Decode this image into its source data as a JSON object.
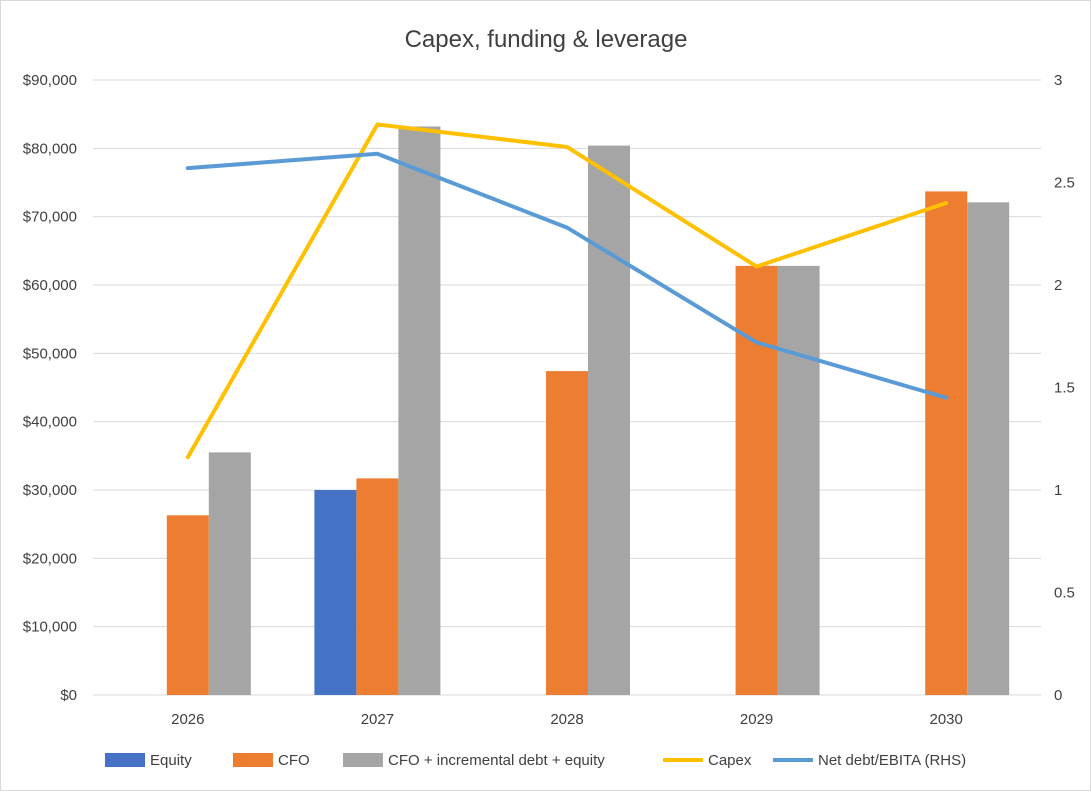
{
  "chart_data": {
    "type": "bar",
    "title": "Capex, funding & leverage",
    "categories": [
      "2026",
      "2027",
      "2028",
      "2029",
      "2030"
    ],
    "y_left": {
      "min": 0,
      "max": 90000,
      "step": 10000,
      "tick_labels": [
        "$0",
        "$10,000",
        "$20,000",
        "$30,000",
        "$40,000",
        "$50,000",
        "$60,000",
        "$70,000",
        "$80,000",
        "$90,000"
      ]
    },
    "y_right": {
      "min": 0,
      "max": 3,
      "step": 0.5,
      "tick_labels": [
        "0",
        "0.5",
        "1",
        "1.5",
        "2",
        "2.5",
        "3"
      ]
    },
    "gridlines": true,
    "legend_position": "bottom",
    "series": [
      {
        "name": "Equity",
        "kind": "bar",
        "axis": "left",
        "color": "#4472C4",
        "values": [
          null,
          30000,
          null,
          null,
          null
        ]
      },
      {
        "name": "CFO",
        "kind": "bar",
        "axis": "left",
        "color": "#ED7D31",
        "values": [
          26300,
          31700,
          47400,
          62800,
          73700
        ]
      },
      {
        "name": "CFO + incremental debt + equity",
        "kind": "bar",
        "axis": "left",
        "color": "#A5A5A5",
        "values": [
          35500,
          83200,
          80400,
          62800,
          72100
        ]
      },
      {
        "name": "Capex",
        "kind": "line",
        "axis": "left",
        "color": "#FFC000",
        "values": [
          34800,
          83500,
          80200,
          62700,
          72000
        ]
      },
      {
        "name": "Net debt/EBITA (RHS)",
        "kind": "line",
        "axis": "right",
        "color": "#5B9BD5",
        "values": [
          2.57,
          2.64,
          2.28,
          1.72,
          1.45
        ]
      }
    ]
  }
}
